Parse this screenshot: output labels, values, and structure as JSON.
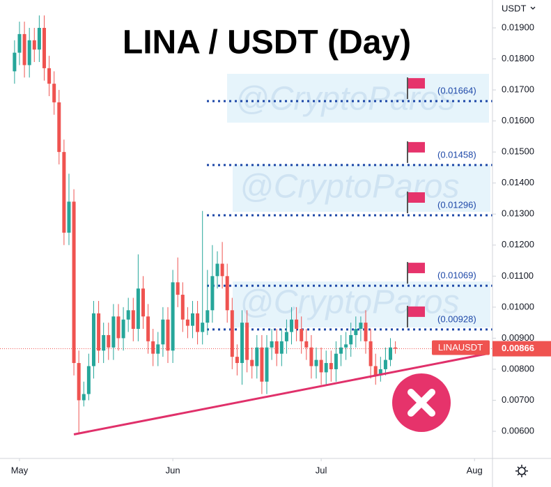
{
  "chart_data": {
    "type": "candlestick",
    "title": "LINA / USDT (Day)",
    "y_axis_label": "USDT",
    "up_color": "#26a69a",
    "down_color": "#ef5350",
    "x": [
      -1,
      0,
      1,
      2,
      3,
      4,
      5,
      6,
      7,
      8,
      9,
      10,
      11,
      12,
      13,
      14,
      15,
      16,
      17,
      18,
      19,
      20,
      21,
      22,
      23,
      24,
      25,
      26,
      27,
      28,
      29,
      30,
      31,
      32,
      33,
      34,
      35,
      36,
      37,
      38,
      39,
      40,
      41,
      42,
      43,
      44,
      45,
      46,
      47,
      48,
      49,
      50,
      51,
      52,
      53,
      54,
      55,
      56,
      57,
      58,
      59,
      60,
      61,
      62,
      63,
      64,
      65,
      66,
      67,
      68,
      69,
      70,
      71,
      72,
      73,
      74,
      75,
      76
    ],
    "open": [
      0.0176,
      0.0182,
      0.0188,
      0.0178,
      0.0186,
      0.0183,
      0.019,
      0.0177,
      0.0172,
      0.0166,
      0.015,
      0.0124,
      0.0134,
      0.0082,
      0.007,
      0.0072,
      0.0081,
      0.0098,
      0.0086,
      0.0091,
      0.0087,
      0.0097,
      0.009,
      0.0096,
      0.0099,
      0.0093,
      0.0106,
      0.0097,
      0.0089,
      0.0085,
      0.0088,
      0.0096,
      0.0086,
      0.0108,
      0.0104,
      0.0096,
      0.0094,
      0.0098,
      0.0092,
      0.0095,
      0.0099,
      0.011,
      0.0114,
      0.011,
      0.0099,
      0.0084,
      0.0082,
      0.0095,
      0.0083,
      0.0081,
      0.0087,
      0.0076,
      0.0087,
      0.0089,
      0.0085,
      0.0089,
      0.0092,
      0.0096,
      0.0093,
      0.0089,
      0.0087,
      0.0081,
      0.0083,
      0.0079,
      0.0082,
      0.008,
      0.0085,
      0.0087,
      0.0088,
      0.0091,
      0.0093,
      0.0095,
      0.0089,
      0.0081,
      0.0078,
      0.008,
      0.0083,
      0.0087
    ],
    "high": [
      0.0186,
      0.0192,
      0.0192,
      0.019,
      0.019,
      0.0194,
      0.0194,
      0.0181,
      0.0176,
      0.017,
      0.0154,
      0.0143,
      0.0138,
      0.0086,
      0.0076,
      0.0085,
      0.0102,
      0.0102,
      0.0095,
      0.0095,
      0.0101,
      0.0101,
      0.01,
      0.0103,
      0.0103,
      0.0117,
      0.011,
      0.0101,
      0.0093,
      0.0092,
      0.01,
      0.01,
      0.0112,
      0.0116,
      0.0108,
      0.01,
      0.0102,
      0.0102,
      0.0131,
      0.0112,
      0.012,
      0.0118,
      0.0121,
      0.0114,
      0.0103,
      0.0088,
      0.0099,
      0.0099,
      0.0087,
      0.0091,
      0.0091,
      0.0091,
      0.0093,
      0.0093,
      0.0093,
      0.0096,
      0.01,
      0.01,
      0.0097,
      0.0093,
      0.0091,
      0.0087,
      0.0087,
      0.0086,
      0.0086,
      0.0089,
      0.0091,
      0.0092,
      0.0095,
      0.0097,
      0.0097,
      0.0099,
      0.0093,
      0.0085,
      0.0084,
      0.0087,
      0.009,
      0.0089
    ],
    "low": [
      0.0172,
      0.0178,
      0.0174,
      0.0174,
      0.0179,
      0.0179,
      0.0173,
      0.0168,
      0.0162,
      0.0146,
      0.012,
      0.012,
      0.0078,
      0.0059,
      0.0068,
      0.007,
      0.0077,
      0.0082,
      0.0082,
      0.0083,
      0.0083,
      0.0086,
      0.0086,
      0.0092,
      0.0089,
      0.0089,
      0.0093,
      0.0085,
      0.0081,
      0.0081,
      0.0084,
      0.0082,
      0.0082,
      0.01,
      0.0092,
      0.009,
      0.009,
      0.0088,
      0.0088,
      0.0091,
      0.0095,
      0.0106,
      0.0106,
      0.0095,
      0.008,
      0.0078,
      0.0075,
      0.0079,
      0.0077,
      0.0077,
      0.0072,
      0.0072,
      0.0083,
      0.0081,
      0.0081,
      0.0085,
      0.0088,
      0.0089,
      0.0085,
      0.0083,
      0.0077,
      0.0077,
      0.0075,
      0.0075,
      0.0076,
      0.0076,
      0.0081,
      0.0083,
      0.0084,
      0.0087,
      0.0089,
      0.0085,
      0.0077,
      0.0075,
      0.0076,
      0.0078,
      0.0081,
      0.0085
    ],
    "close": [
      0.0182,
      0.0188,
      0.0178,
      0.0186,
      0.0183,
      0.019,
      0.0177,
      0.0172,
      0.0166,
      0.015,
      0.0124,
      0.0134,
      0.0082,
      0.007,
      0.0072,
      0.0081,
      0.0098,
      0.0086,
      0.0091,
      0.0087,
      0.0097,
      0.009,
      0.0096,
      0.0099,
      0.0093,
      0.0106,
      0.0097,
      0.0089,
      0.0085,
      0.0088,
      0.0096,
      0.0086,
      0.0108,
      0.0104,
      0.0096,
      0.0094,
      0.0098,
      0.0092,
      0.0095,
      0.0099,
      0.011,
      0.0114,
      0.011,
      0.0099,
      0.0084,
      0.0082,
      0.0095,
      0.0083,
      0.0081,
      0.0087,
      0.0076,
      0.0087,
      0.0089,
      0.0085,
      0.0089,
      0.0092,
      0.0096,
      0.0093,
      0.0089,
      0.0087,
      0.0081,
      0.0083,
      0.0079,
      0.0082,
      0.008,
      0.0085,
      0.0087,
      0.0088,
      0.0091,
      0.0093,
      0.0095,
      0.0089,
      0.0081,
      0.0078,
      0.008,
      0.0083,
      0.0087,
      0.00866
    ],
    "xlim": [
      -3.94,
      95.63
    ],
    "xticks": [
      {
        "value": 0,
        "label": "May"
      },
      {
        "value": 31,
        "label": "Jun"
      },
      {
        "value": 61,
        "label": "Jul"
      },
      {
        "value": 92,
        "label": "Aug"
      }
    ],
    "ylim": [
      0.005125,
      0.019898
    ],
    "yticks": [
      {
        "value": 0.006,
        "label": "0.00600"
      },
      {
        "value": 0.007,
        "label": "0.00700"
      },
      {
        "value": 0.008,
        "label": "0.00800"
      },
      {
        "value": 0.009,
        "label": "0.00900"
      },
      {
        "value": 0.01,
        "label": "0.01000"
      },
      {
        "value": 0.011,
        "label": "0.01100"
      },
      {
        "value": 0.012,
        "label": "0.01200"
      },
      {
        "value": 0.013,
        "label": "0.01300"
      },
      {
        "value": 0.014,
        "label": "0.01400"
      },
      {
        "value": 0.015,
        "label": "0.01500"
      },
      {
        "value": 0.016,
        "label": "0.01600"
      },
      {
        "value": 0.017,
        "label": "0.01700"
      },
      {
        "value": 0.018,
        "label": "0.01800"
      },
      {
        "value": 0.019,
        "label": "0.01900"
      }
    ],
    "levels": {
      "color": "#1e48a8",
      "values": [
        0.01664,
        0.01458,
        0.01296,
        0.01069,
        0.00928
      ],
      "value_labels": [
        "(0.01664)",
        "(0.01458)",
        "(0.01296)",
        "(0.01069)",
        "(0.00928)"
      ]
    },
    "trendline": {
      "color": "#e0306a",
      "x": [
        11,
        94.6
      ],
      "values": [
        0.0059,
        0.0085
      ]
    },
    "last_price": {
      "symbol": "LINAUSDT",
      "value": 0.00866,
      "color": "#ef5350"
    },
    "watermark": "@CryptoParos"
  }
}
